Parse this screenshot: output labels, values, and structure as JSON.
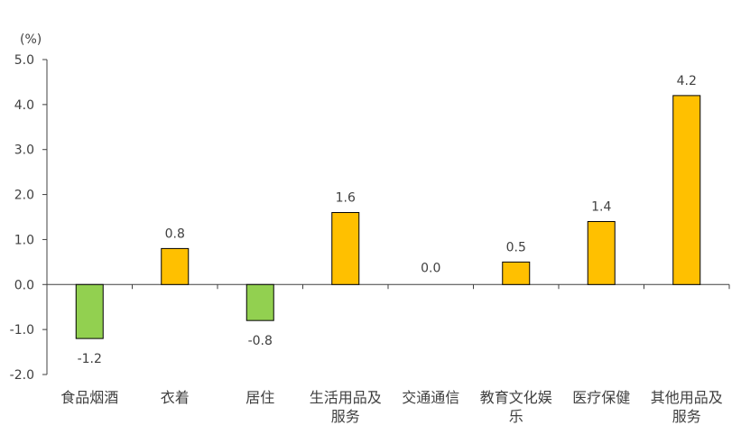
{
  "chart_data": {
    "type": "bar",
    "unit_label": "(%)",
    "categories": [
      [
        "食品烟酒"
      ],
      [
        "衣着"
      ],
      [
        "居住"
      ],
      [
        "生活用品及",
        "服务"
      ],
      [
        "交通通信"
      ],
      [
        "教育文化娱",
        "乐"
      ],
      [
        "医疗保健"
      ],
      [
        "其他用品及",
        "服务"
      ]
    ],
    "values": [
      -1.2,
      0.8,
      -0.8,
      1.6,
      0.0,
      0.5,
      1.4,
      4.2
    ],
    "value_labels": [
      "-1.2",
      "0.8",
      "-0.8",
      "1.6",
      "0.0",
      "0.5",
      "1.4",
      "4.2"
    ],
    "ylim": [
      -2.0,
      5.0
    ],
    "yticks": [
      "5.0",
      "4.0",
      "3.0",
      "2.0",
      "1.0",
      "0.0",
      "-1.0",
      "-2.0"
    ],
    "ytick_values": [
      5,
      4,
      3,
      2,
      1,
      0,
      -1,
      -2
    ],
    "grid": false,
    "legend": "none",
    "colors": {
      "positive": "#FFC000",
      "negative": "#92D050",
      "bar_border": "#000000",
      "axis": "#404040",
      "text": "#404040"
    }
  }
}
